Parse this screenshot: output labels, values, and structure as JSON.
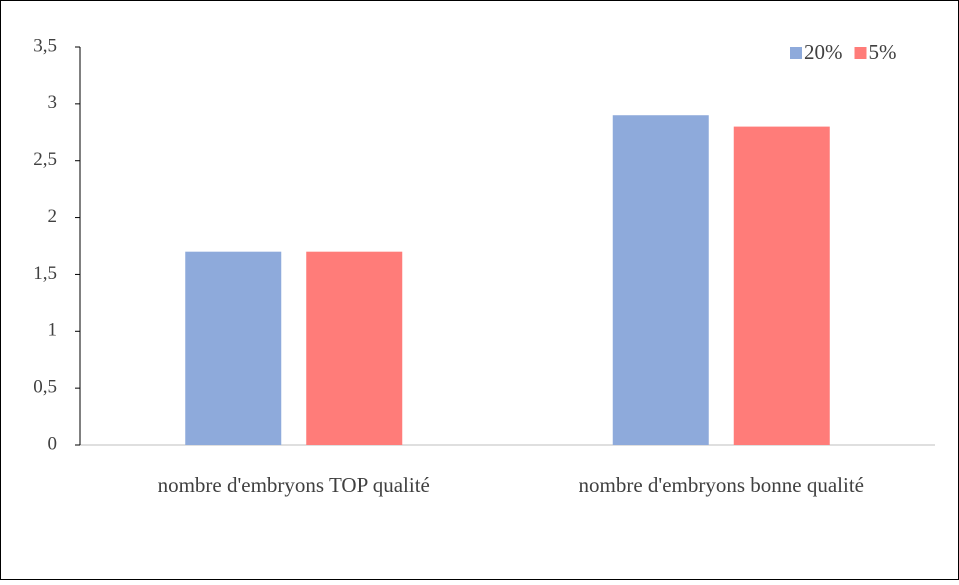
{
  "chart_data": {
    "type": "bar",
    "categories": [
      "nombre d'embryons TOP qualité",
      "nombre d'embryons bonne qualité"
    ],
    "series": [
      {
        "name": "20%",
        "color": "#8eaadb",
        "values": [
          1.7,
          2.9
        ]
      },
      {
        "name": "5%",
        "color": "#ff7c79",
        "values": [
          1.7,
          2.8
        ]
      }
    ],
    "ylim": [
      0,
      3.5
    ],
    "yticks": [
      0,
      {
        "value": 0.5,
        "label": "0,5"
      },
      1,
      {
        "value": 1.5,
        "label": "1,5"
      },
      2,
      {
        "value": 2.5,
        "label": "2,5"
      },
      3,
      {
        "value": 3.5,
        "label": "3,5"
      }
    ],
    "legend": "top-right",
    "grid": false
  }
}
